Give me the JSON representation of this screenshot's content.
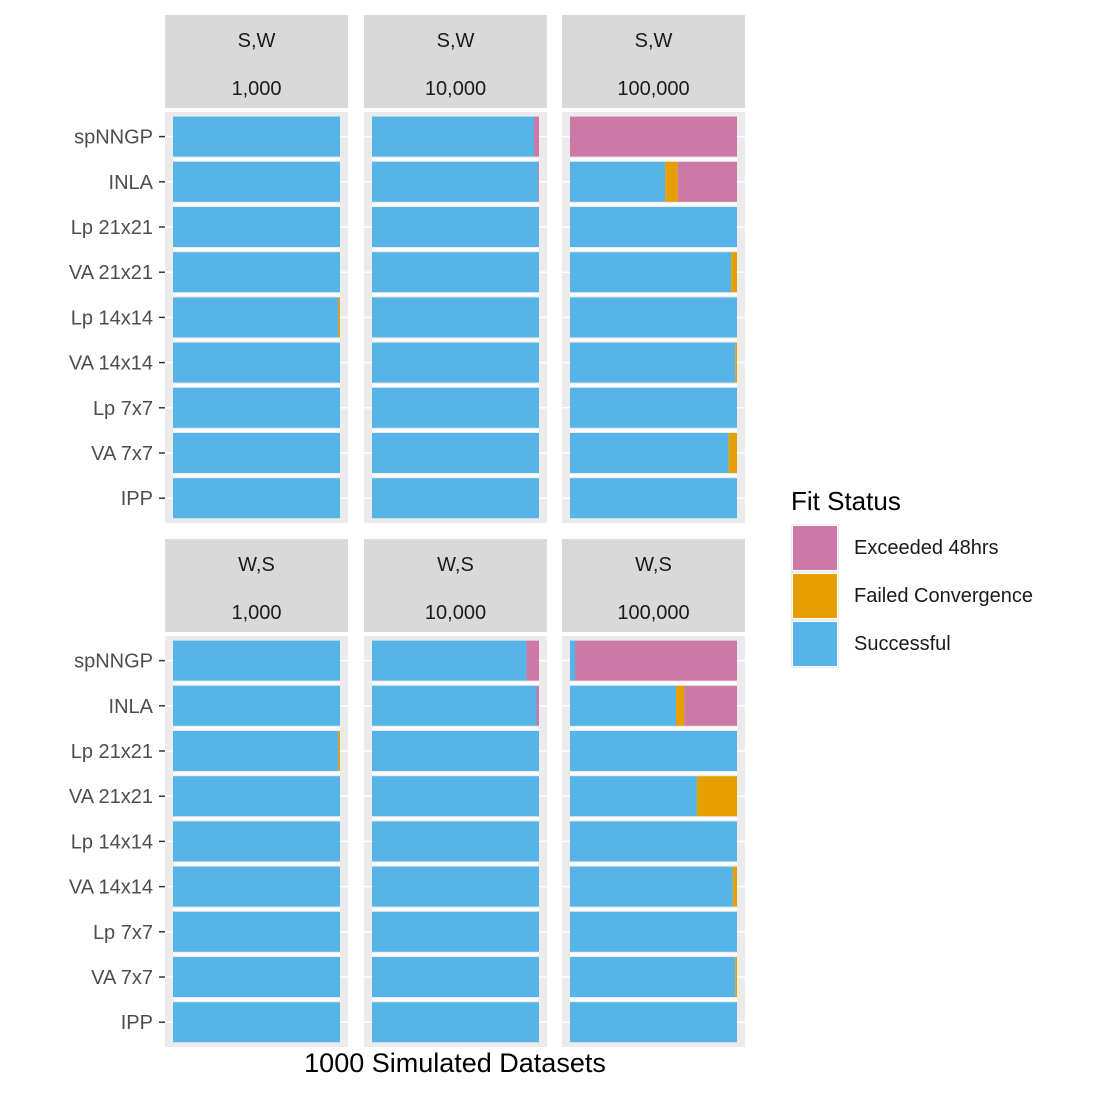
{
  "chart_data": {
    "type": "bar",
    "orientation": "horizontal",
    "stacked": "percent",
    "xlabel": "1000 Simulated Datasets",
    "ylabel": "",
    "categories": [
      "spNNGP",
      "INLA",
      "Lp 21x21",
      "VA 21x21",
      "Lp 14x14",
      "VA 14x14",
      "Lp 7x7",
      "VA 7x7",
      "IPP"
    ],
    "legend": {
      "title": "Fit Status",
      "position": "right",
      "entries": [
        {
          "key": "exceeded",
          "label": "Exceeded 48hrs",
          "color": "#CC79A7"
        },
        {
          "key": "failed",
          "label": "Failed Convergence",
          "color": "#E69F00"
        },
        {
          "key": "successful",
          "label": "Successful",
          "color": "#56B4E9"
        }
      ]
    },
    "grid": true,
    "facets": [
      {
        "strip": [
          "S,W",
          "1,000"
        ],
        "values": {
          "successful": [
            1000,
            1000,
            1000,
            1000,
            990,
            1000,
            1000,
            1000,
            1000
          ],
          "failed": [
            0,
            0,
            0,
            0,
            10,
            0,
            0,
            0,
            0
          ],
          "exceeded": [
            0,
            0,
            0,
            0,
            0,
            0,
            0,
            0,
            0
          ]
        }
      },
      {
        "strip": [
          "S,W",
          "10,000"
        ],
        "values": {
          "successful": [
            970,
            995,
            1000,
            1000,
            1000,
            1000,
            1000,
            1000,
            1000
          ],
          "failed": [
            0,
            0,
            0,
            0,
            0,
            0,
            0,
            0,
            0
          ],
          "exceeded": [
            30,
            5,
            0,
            0,
            0,
            0,
            0,
            0,
            0
          ]
        }
      },
      {
        "strip": [
          "S,W",
          "100,000"
        ],
        "values": {
          "successful": [
            0,
            570,
            1000,
            965,
            1000,
            990,
            1000,
            950,
            1000
          ],
          "failed": [
            0,
            75,
            0,
            35,
            0,
            10,
            0,
            50,
            0
          ],
          "exceeded": [
            1000,
            355,
            0,
            0,
            0,
            0,
            0,
            0,
            0
          ]
        }
      },
      {
        "strip": [
          "W,S",
          "1,000"
        ],
        "values": {
          "successful": [
            1000,
            1000,
            990,
            1000,
            1000,
            1000,
            1000,
            1000,
            1000
          ],
          "failed": [
            0,
            0,
            10,
            0,
            0,
            0,
            0,
            0,
            0
          ],
          "exceeded": [
            0,
            0,
            0,
            0,
            0,
            0,
            0,
            0,
            0
          ]
        }
      },
      {
        "strip": [
          "W,S",
          "10,000"
        ],
        "values": {
          "successful": [
            925,
            985,
            1000,
            1000,
            1000,
            1000,
            1000,
            1000,
            1000
          ],
          "failed": [
            0,
            0,
            0,
            0,
            0,
            0,
            0,
            0,
            0
          ],
          "exceeded": [
            75,
            15,
            0,
            0,
            0,
            0,
            0,
            0,
            0
          ]
        }
      },
      {
        "strip": [
          "W,S",
          "100,000"
        ],
        "values": {
          "successful": [
            30,
            635,
            1000,
            760,
            1000,
            975,
            1000,
            990,
            1000
          ],
          "failed": [
            0,
            50,
            0,
            240,
            0,
            25,
            0,
            10,
            0
          ],
          "exceeded": [
            970,
            315,
            0,
            0,
            0,
            0,
            0,
            0,
            0
          ]
        }
      }
    ]
  }
}
